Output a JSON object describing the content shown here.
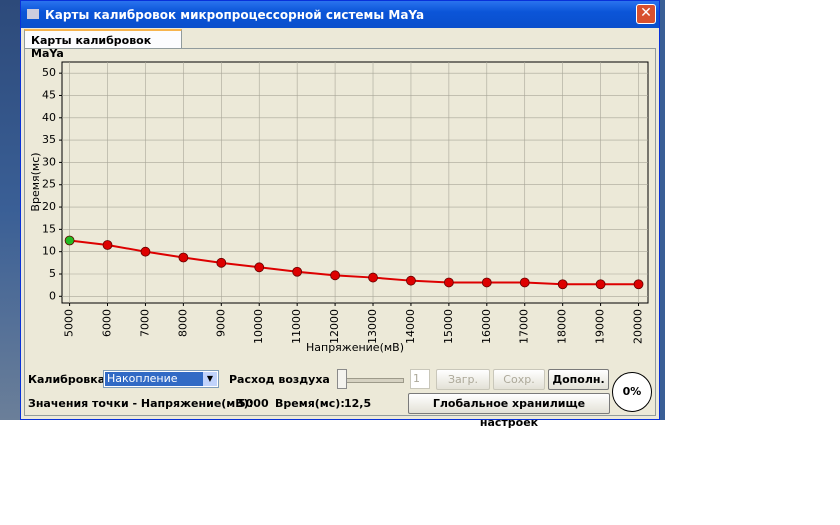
{
  "window": {
    "title": "Карты калибровок микропроцессорной системы MaYa",
    "tab": "Карты калибровок MaYa"
  },
  "chart_data": {
    "type": "line",
    "xlabel": "Напряжение(мВ)",
    "ylabel": "Время(мс)",
    "x": [
      5000,
      6000,
      7000,
      8000,
      9000,
      10000,
      11000,
      12000,
      13000,
      14000,
      15000,
      16000,
      17000,
      18000,
      19000,
      20000
    ],
    "series": [
      {
        "color": "#dd0000",
        "values": [
          12.5,
          11.5,
          10,
          8.7,
          7.5,
          6.5,
          5.5,
          4.7,
          4.2,
          3.5,
          3.1,
          3.1,
          3.1,
          2.7,
          2.7,
          2.7
        ]
      }
    ],
    "selected_point": 0,
    "selected_color": "#22bb22",
    "xlim": [
      4800,
      20250
    ],
    "ylim": [
      -1.5,
      52.5
    ],
    "xticks": [
      5000,
      6000,
      7000,
      8000,
      9000,
      10000,
      11000,
      12000,
      13000,
      14000,
      15000,
      16000,
      17000,
      18000,
      19000,
      20000
    ],
    "yticks": [
      0,
      5,
      10,
      15,
      20,
      25,
      30,
      35,
      40,
      45,
      50
    ],
    "grid": true
  },
  "controls": {
    "calibration_label": "Калибровка",
    "calibration_value": "Накопление",
    "airflow_label": "Расход воздуха",
    "airflow_input": "1",
    "load_button": "Загр.",
    "save_button": "Сохр.",
    "more_button": "Дополн.",
    "progress": "0%",
    "status_voltage_label": "Значения точки - Напряжение(мВ):",
    "status_voltage_value": "5000",
    "status_time_label": "Время(мс):",
    "status_time_value": "12,5",
    "global_button": "Глобальное хранилище настроек"
  }
}
